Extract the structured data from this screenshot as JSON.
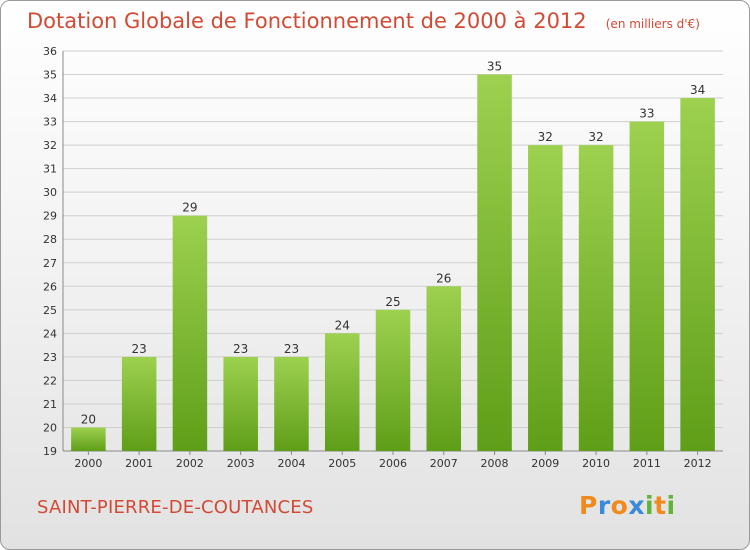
{
  "chart_data": {
    "type": "bar",
    "title": "Dotation Globale de Fonctionnement de 2000 à 2012",
    "subtitle": "(en milliers d'€)",
    "categories": [
      "2000",
      "2001",
      "2002",
      "2003",
      "2004",
      "2005",
      "2006",
      "2007",
      "2008",
      "2009",
      "2010",
      "2011",
      "2012"
    ],
    "values": [
      20,
      23,
      29,
      23,
      23,
      24,
      25,
      26,
      35,
      32,
      32,
      33,
      34
    ],
    "ylim": [
      19,
      36
    ],
    "yticks": [
      19,
      20,
      21,
      22,
      23,
      24,
      25,
      26,
      27,
      28,
      29,
      30,
      31,
      32,
      33,
      34,
      35,
      36
    ],
    "grid": true,
    "bar_color_top": "#9dd14f",
    "bar_color_bottom": "#5f9e18"
  },
  "commune": "SAINT-PIERRE-DE-COUTANCES",
  "logo": {
    "letters": [
      "P",
      "r",
      "o",
      "x",
      "i",
      "t",
      "i"
    ],
    "colors": [
      "#f08a1c",
      "#3a8ad8",
      "#f08a1c",
      "#3a8ad8",
      "#5fb53a",
      "#f08a1c",
      "#5fb53a"
    ]
  }
}
